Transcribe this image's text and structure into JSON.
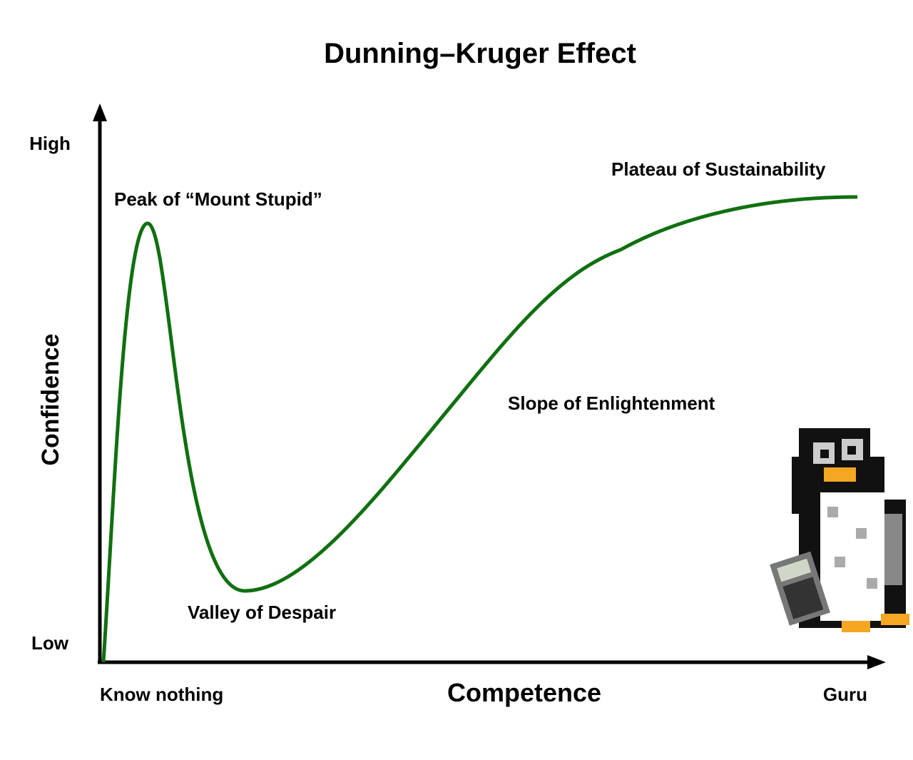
{
  "title": "Dunning–Kruger Effect",
  "y_axis": {
    "label": "Confidence",
    "high": "High",
    "low": "Low"
  },
  "x_axis": {
    "label": "Competence",
    "start": "Know nothing",
    "end": "Guru"
  },
  "annotations": [
    "Peak of “Mount Stupid”",
    "Valley of Despair",
    "Slope of Enlightenment",
    "Plateau of Sustainability"
  ]
}
